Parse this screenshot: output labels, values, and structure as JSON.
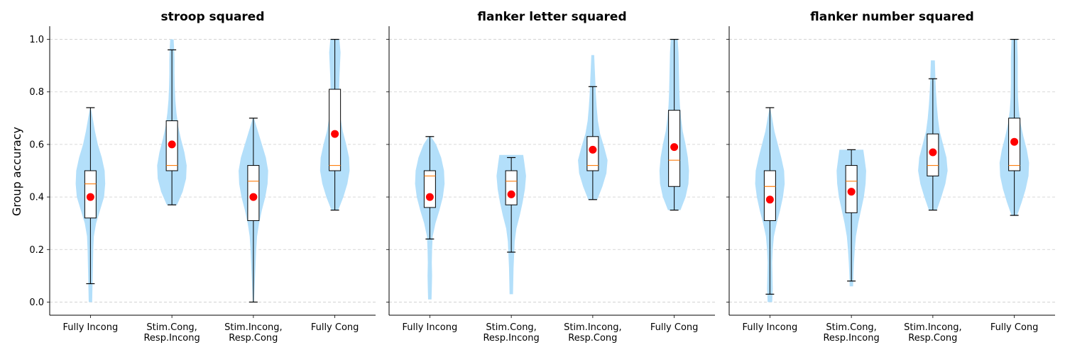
{
  "ylabel": "Group accuracy",
  "colors": {
    "violin": "#b3dffa",
    "box_edge": "#000000",
    "box_fill": "#ffffff",
    "median": "#ff7f0e",
    "mean": "#ff0000",
    "grid": "#cccccc"
  },
  "chart_data": [
    {
      "type": "violin",
      "title": "stroop squared",
      "ylim": [
        -0.05,
        1.05
      ],
      "yticks": [
        0.0,
        0.2,
        0.4,
        0.6,
        0.8,
        1.0
      ],
      "grid": "horizontal dashed",
      "categories": [
        [
          "Fully Incong"
        ],
        [
          "Stim.Cong,",
          "Resp.Incong"
        ],
        [
          "Stim.Incong,",
          "Resp.Cong"
        ],
        [
          "Fully Cong"
        ]
      ],
      "groups": [
        {
          "min": 0.07,
          "q1": 0.32,
          "median": 0.45,
          "q3": 0.5,
          "max": 0.74,
          "mean": 0.4,
          "violin": {
            "lo": 0.0,
            "hi": 0.74,
            "profile": [
              [
                0.0,
                0.06
              ],
              [
                0.05,
                0.07
              ],
              [
                0.1,
                0.08
              ],
              [
                0.15,
                0.09
              ],
              [
                0.2,
                0.1
              ],
              [
                0.25,
                0.12
              ],
              [
                0.3,
                0.2
              ],
              [
                0.35,
                0.34
              ],
              [
                0.4,
                0.48
              ],
              [
                0.45,
                0.52
              ],
              [
                0.5,
                0.5
              ],
              [
                0.55,
                0.4
              ],
              [
                0.6,
                0.26
              ],
              [
                0.65,
                0.16
              ],
              [
                0.7,
                0.08
              ],
              [
                0.74,
                0.01
              ]
            ]
          }
        },
        {
          "min": 0.37,
          "q1": 0.5,
          "median": 0.52,
          "q3": 0.69,
          "max": 0.96,
          "mean": 0.6,
          "violin": {
            "lo": 0.37,
            "hi": 1.0,
            "profile": [
              [
                0.37,
                0.18
              ],
              [
                0.42,
                0.38
              ],
              [
                0.47,
                0.5
              ],
              [
                0.52,
                0.52
              ],
              [
                0.57,
                0.44
              ],
              [
                0.62,
                0.32
              ],
              [
                0.67,
                0.22
              ],
              [
                0.72,
                0.16
              ],
              [
                0.77,
                0.12
              ],
              [
                0.82,
                0.1
              ],
              [
                0.87,
                0.09
              ],
              [
                0.92,
                0.09
              ],
              [
                0.96,
                0.08
              ],
              [
                1.0,
                0.06
              ]
            ]
          }
        },
        {
          "min": 0.0,
          "q1": 0.31,
          "median": 0.46,
          "q3": 0.52,
          "max": 0.7,
          "mean": 0.4,
          "violin": {
            "lo": 0.0,
            "hi": 0.7,
            "profile": [
              [
                0.0,
                0.02
              ],
              [
                0.05,
                0.04
              ],
              [
                0.1,
                0.06
              ],
              [
                0.15,
                0.08
              ],
              [
                0.2,
                0.1
              ],
              [
                0.25,
                0.13
              ],
              [
                0.3,
                0.2
              ],
              [
                0.35,
                0.3
              ],
              [
                0.4,
                0.42
              ],
              [
                0.45,
                0.5
              ],
              [
                0.5,
                0.52
              ],
              [
                0.55,
                0.44
              ],
              [
                0.6,
                0.3
              ],
              [
                0.65,
                0.16
              ],
              [
                0.7,
                0.02
              ]
            ]
          }
        },
        {
          "min": 0.35,
          "q1": 0.5,
          "median": 0.52,
          "q3": 0.81,
          "max": 1.0,
          "mean": 0.64,
          "violin": {
            "lo": 0.35,
            "hi": 1.0,
            "profile": [
              [
                0.35,
                0.12
              ],
              [
                0.4,
                0.3
              ],
              [
                0.45,
                0.44
              ],
              [
                0.5,
                0.52
              ],
              [
                0.55,
                0.5
              ],
              [
                0.6,
                0.4
              ],
              [
                0.65,
                0.28
              ],
              [
                0.7,
                0.2
              ],
              [
                0.75,
                0.16
              ],
              [
                0.8,
                0.15
              ],
              [
                0.85,
                0.16
              ],
              [
                0.9,
                0.18
              ],
              [
                0.95,
                0.2
              ],
              [
                1.0,
                0.16
              ]
            ]
          }
        }
      ]
    },
    {
      "type": "violin",
      "title": "flanker letter squared",
      "ylim": [
        -0.05,
        1.05
      ],
      "yticks": [
        0.0,
        0.2,
        0.4,
        0.6,
        0.8,
        1.0
      ],
      "grid": "horizontal dashed",
      "categories": [
        [
          "Fully Incong"
        ],
        [
          "Stim.Cong,",
          "Resp.Incong"
        ],
        [
          "Stim.Incong,",
          "Resp.Cong"
        ],
        [
          "Fully Cong"
        ]
      ],
      "groups": [
        {
          "min": 0.24,
          "q1": 0.36,
          "median": 0.48,
          "q3": 0.5,
          "max": 0.63,
          "mean": 0.4,
          "violin": {
            "lo": 0.01,
            "hi": 0.63,
            "profile": [
              [
                0.01,
                0.06
              ],
              [
                0.05,
                0.07
              ],
              [
                0.1,
                0.08
              ],
              [
                0.15,
                0.07
              ],
              [
                0.2,
                0.08
              ],
              [
                0.25,
                0.1
              ],
              [
                0.3,
                0.2
              ],
              [
                0.35,
                0.34
              ],
              [
                0.4,
                0.46
              ],
              [
                0.45,
                0.52
              ],
              [
                0.5,
                0.5
              ],
              [
                0.55,
                0.4
              ],
              [
                0.6,
                0.22
              ],
              [
                0.63,
                0.04
              ]
            ]
          }
        },
        {
          "min": 0.19,
          "q1": 0.37,
          "median": 0.46,
          "q3": 0.5,
          "max": 0.55,
          "mean": 0.41,
          "violin": {
            "lo": 0.03,
            "hi": 0.56,
            "profile": [
              [
                0.03,
                0.06
              ],
              [
                0.08,
                0.07
              ],
              [
                0.13,
                0.08
              ],
              [
                0.18,
                0.1
              ],
              [
                0.23,
                0.12
              ],
              [
                0.28,
                0.18
              ],
              [
                0.33,
                0.3
              ],
              [
                0.38,
                0.4
              ],
              [
                0.43,
                0.48
              ],
              [
                0.48,
                0.52
              ],
              [
                0.53,
                0.46
              ],
              [
                0.56,
                0.42
              ]
            ]
          }
        },
        {
          "min": 0.39,
          "q1": 0.5,
          "median": 0.52,
          "q3": 0.63,
          "max": 0.82,
          "mean": 0.58,
          "violin": {
            "lo": 0.39,
            "hi": 0.94,
            "profile": [
              [
                0.39,
                0.16
              ],
              [
                0.44,
                0.34
              ],
              [
                0.49,
                0.48
              ],
              [
                0.54,
                0.52
              ],
              [
                0.59,
                0.4
              ],
              [
                0.64,
                0.26
              ],
              [
                0.69,
                0.18
              ],
              [
                0.74,
                0.14
              ],
              [
                0.79,
                0.11
              ],
              [
                0.84,
                0.09
              ],
              [
                0.89,
                0.07
              ],
              [
                0.94,
                0.05
              ]
            ]
          }
        },
        {
          "min": 0.35,
          "q1": 0.44,
          "median": 0.54,
          "q3": 0.73,
          "max": 1.0,
          "mean": 0.59,
          "violin": {
            "lo": 0.35,
            "hi": 1.0,
            "profile": [
              [
                0.35,
                0.22
              ],
              [
                0.4,
                0.4
              ],
              [
                0.45,
                0.5
              ],
              [
                0.5,
                0.52
              ],
              [
                0.55,
                0.48
              ],
              [
                0.6,
                0.4
              ],
              [
                0.65,
                0.3
              ],
              [
                0.7,
                0.24
              ],
              [
                0.75,
                0.2
              ],
              [
                0.8,
                0.18
              ],
              [
                0.85,
                0.17
              ],
              [
                0.9,
                0.16
              ],
              [
                0.95,
                0.15
              ],
              [
                1.0,
                0.12
              ]
            ]
          }
        }
      ]
    },
    {
      "type": "violin",
      "title": "flanker number squared",
      "ylim": [
        -0.05,
        1.05
      ],
      "yticks": [
        0.0,
        0.2,
        0.4,
        0.6,
        0.8,
        1.0
      ],
      "grid": "horizontal dashed",
      "categories": [
        [
          "Fully Incong"
        ],
        [
          "Stim.Cong,",
          "Resp.Incong"
        ],
        [
          "Stim.Incong,",
          "Resp.Cong"
        ],
        [
          "Fully Cong"
        ]
      ],
      "groups": [
        {
          "min": 0.03,
          "q1": 0.31,
          "median": 0.44,
          "q3": 0.5,
          "max": 0.74,
          "mean": 0.39,
          "violin": {
            "lo": 0.0,
            "hi": 0.74,
            "profile": [
              [
                0.0,
                0.08
              ],
              [
                0.05,
                0.1
              ],
              [
                0.1,
                0.09
              ],
              [
                0.15,
                0.08
              ],
              [
                0.2,
                0.1
              ],
              [
                0.25,
                0.14
              ],
              [
                0.3,
                0.24
              ],
              [
                0.35,
                0.36
              ],
              [
                0.4,
                0.46
              ],
              [
                0.45,
                0.52
              ],
              [
                0.5,
                0.5
              ],
              [
                0.55,
                0.4
              ],
              [
                0.6,
                0.28
              ],
              [
                0.65,
                0.16
              ],
              [
                0.7,
                0.08
              ],
              [
                0.74,
                0.01
              ]
            ]
          }
        },
        {
          "min": 0.08,
          "q1": 0.34,
          "median": 0.46,
          "q3": 0.52,
          "max": 0.58,
          "mean": 0.42,
          "violin": {
            "lo": 0.06,
            "hi": 0.58,
            "profile": [
              [
                0.06,
                0.06
              ],
              [
                0.1,
                0.07
              ],
              [
                0.15,
                0.09
              ],
              [
                0.2,
                0.12
              ],
              [
                0.25,
                0.16
              ],
              [
                0.3,
                0.24
              ],
              [
                0.35,
                0.34
              ],
              [
                0.4,
                0.44
              ],
              [
                0.45,
                0.5
              ],
              [
                0.5,
                0.52
              ],
              [
                0.55,
                0.46
              ],
              [
                0.58,
                0.42
              ]
            ]
          }
        },
        {
          "min": 0.35,
          "q1": 0.48,
          "median": 0.52,
          "q3": 0.64,
          "max": 0.85,
          "mean": 0.57,
          "violin": {
            "lo": 0.35,
            "hi": 0.92,
            "profile": [
              [
                0.35,
                0.14
              ],
              [
                0.4,
                0.3
              ],
              [
                0.45,
                0.44
              ],
              [
                0.5,
                0.52
              ],
              [
                0.55,
                0.48
              ],
              [
                0.6,
                0.36
              ],
              [
                0.65,
                0.24
              ],
              [
                0.7,
                0.18
              ],
              [
                0.75,
                0.14
              ],
              [
                0.8,
                0.11
              ],
              [
                0.85,
                0.09
              ],
              [
                0.92,
                0.07
              ]
            ]
          }
        },
        {
          "min": 0.33,
          "q1": 0.5,
          "median": 0.52,
          "q3": 0.7,
          "max": 1.0,
          "mean": 0.61,
          "violin": {
            "lo": 0.33,
            "hi": 1.0,
            "profile": [
              [
                0.33,
                0.1
              ],
              [
                0.38,
                0.26
              ],
              [
                0.43,
                0.4
              ],
              [
                0.48,
                0.5
              ],
              [
                0.53,
                0.52
              ],
              [
                0.58,
                0.44
              ],
              [
                0.63,
                0.32
              ],
              [
                0.68,
                0.22
              ],
              [
                0.73,
                0.16
              ],
              [
                0.78,
                0.13
              ],
              [
                0.83,
                0.12
              ],
              [
                0.88,
                0.12
              ],
              [
                0.93,
                0.12
              ],
              [
                1.0,
                0.1
              ]
            ]
          }
        }
      ]
    }
  ]
}
